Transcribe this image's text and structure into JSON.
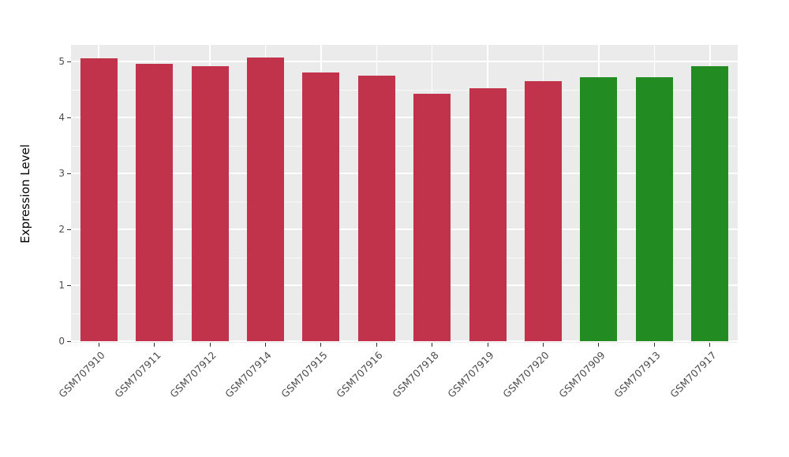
{
  "colors": {
    "crimson": "#C0334B",
    "green": "#228B22",
    "panel_background": "#EBEBEB",
    "gridline": "#FFFFFF",
    "axis_text": "#4D4D4D",
    "tick_mark": "#333333",
    "figure_background": "#FFFFFF"
  },
  "chart_data": {
    "type": "bar",
    "title": "",
    "xlabel": "",
    "ylabel": "Expression Level",
    "ylim": [
      0,
      5.3
    ],
    "yticks": [
      0,
      1,
      2,
      3,
      4,
      5
    ],
    "grid": "white major and minor horizontal gridlines plus vertical category gridlines on gray panel",
    "legend_position": "none",
    "categories": [
      "GSM707910",
      "GSM707911",
      "GSM707912",
      "GSM707914",
      "GSM707915",
      "GSM707916",
      "GSM707918",
      "GSM707919",
      "GSM707920",
      "GSM707909",
      "GSM707913",
      "GSM707917"
    ],
    "values": [
      5.06,
      4.96,
      4.92,
      5.07,
      4.8,
      4.75,
      4.42,
      4.52,
      4.65,
      4.72,
      4.72,
      4.92
    ],
    "bar_groups": [
      "crimson",
      "crimson",
      "crimson",
      "crimson",
      "crimson",
      "crimson",
      "crimson",
      "crimson",
      "crimson",
      "green",
      "green",
      "green"
    ]
  }
}
